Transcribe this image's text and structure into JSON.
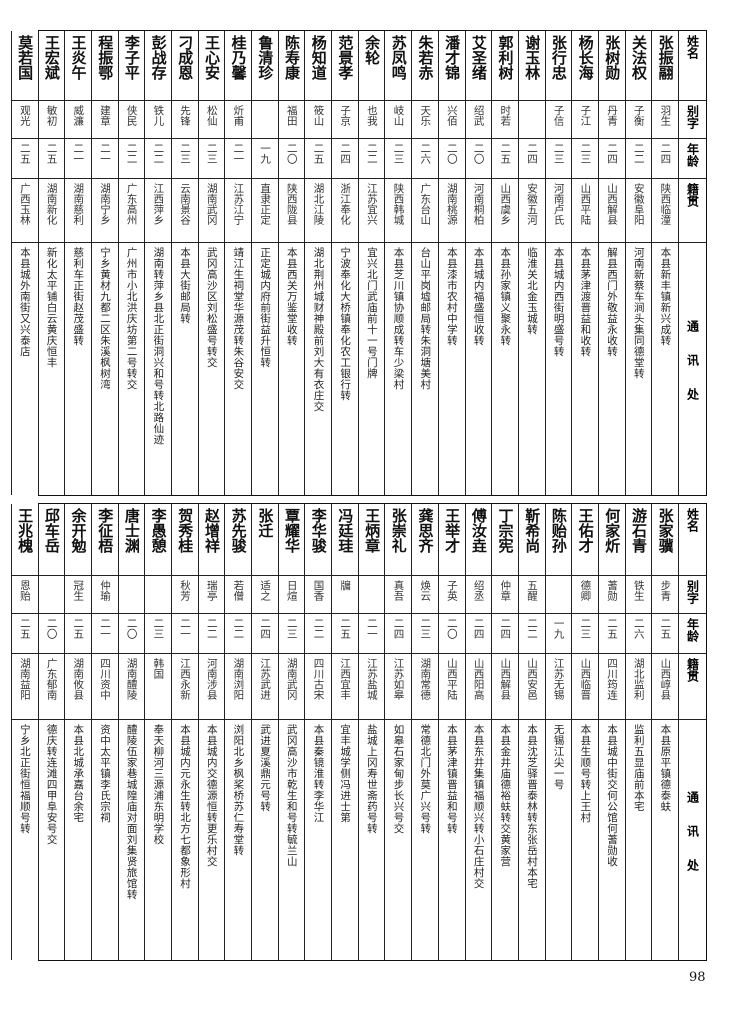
{
  "headers": {
    "name": "姓名",
    "alias": "别字",
    "age": "年龄",
    "native": "籍贯",
    "address": "通讯处"
  },
  "top": [
    {
      "name": "张振翮",
      "alias": "羽生",
      "age": "二四",
      "native": "陕西临潼",
      "address": "本县新丰镇新兴成转"
    },
    {
      "name": "关法权",
      "alias": "子衡",
      "age": "二二",
      "native": "安徽阜阳",
      "address": "河南新蔡车涧头集同德堂转"
    },
    {
      "name": "张树勋",
      "alias": "丹青",
      "age": "二四",
      "native": "山西解县",
      "address": "解县西门外敬益永收转"
    },
    {
      "name": "杨长海",
      "alias": "子江",
      "age": "二三",
      "native": "山西平陆",
      "address": "本县茅津渡晋益和收转"
    },
    {
      "name": "张行忠",
      "alias": "子信",
      "age": "二三",
      "native": "河南卢氏",
      "address": "本县城内西街明盛号转"
    },
    {
      "name": "谢玉林",
      "alias": "",
      "age": "二四",
      "native": "安徽五河",
      "address": "临淮关北金玉城转"
    },
    {
      "name": "郭利树",
      "alias": "时若",
      "age": "二五",
      "native": "山西虞乡",
      "address": "本县孙家镇义聚永转"
    },
    {
      "name": "艾圣绪",
      "alias": "绍武",
      "age": "二〇",
      "native": "河南桐柏",
      "address": "本县城内福盛恒收转"
    },
    {
      "name": "潘才锦",
      "alias": "兴佰",
      "age": "二〇",
      "native": "湖南桃源",
      "address": "本县漆市农村中学转"
    },
    {
      "name": "朱若赤",
      "alias": "天乐",
      "age": "二六",
      "native": "广东台山",
      "address": "台山平岗墟邮局转朱洞塘美村"
    },
    {
      "name": "苏凤鸣",
      "alias": "岐山",
      "age": "二三",
      "native": "陕西韩城",
      "address": "本县芝川镇协顺成转车少梁村"
    },
    {
      "name": "余轮",
      "alias": "也我",
      "age": "二二",
      "native": "江苏宜兴",
      "address": "宜兴北门武庙前十一号门牌"
    },
    {
      "name": "范景孝",
      "alias": "子京",
      "age": "二四",
      "native": "浙江奉化",
      "address": "宁波奉化大桥镇奉化农工银行转"
    },
    {
      "name": "杨知道",
      "alias": "筱山",
      "age": "二五",
      "native": "湖北江陵",
      "address": "湖北荆州城财神殿前刘大有衣庄交"
    },
    {
      "name": "陈寿康",
      "alias": "福田",
      "age": "二〇",
      "native": "陕西陇县",
      "address": "本县西关万鉴堂收转"
    },
    {
      "name": "鲁清珍",
      "alias": "",
      "age": "一九",
      "native": "直隶正定",
      "address": "正定城内府前街益升恒转"
    },
    {
      "name": "桂乃馨",
      "alias": "炘甫",
      "age": "二一",
      "native": "江苏江宁",
      "address": "靖江生祠堂华源茂转朱谷安交"
    },
    {
      "name": "王心安",
      "alias": "松仙",
      "age": "二三",
      "native": "湖南武冈",
      "address": "武冈高沙区刘松盛号转交"
    },
    {
      "name": "刁成恩",
      "alias": "先锋",
      "age": "二三",
      "native": "云南景谷",
      "address": "本县大街邮局转"
    },
    {
      "name": "彭战存",
      "alias": "铁儿",
      "age": "二二",
      "native": "江西萍乡",
      "address": "湖南转萍乡县北正街洞兴和号转北路仙迹"
    },
    {
      "name": "李子平",
      "alias": "侠民",
      "age": "二二",
      "native": "广东高州",
      "address": "广州市小北洪庆坊第二号转交"
    },
    {
      "name": "程振鄂",
      "alias": "建章",
      "age": "二一",
      "native": "湖南宁乡",
      "address": "宁乡黄材九都二区朱溪枫树湾"
    },
    {
      "name": "王炎午",
      "alias": "威濂",
      "age": "二一",
      "native": "湖南慈利",
      "address": "慈利车正街赵茂盛转"
    },
    {
      "name": "王宏斌",
      "alias": "敏初",
      "age": "二五",
      "native": "湖南新化",
      "address": "新化太平铺白云黄庆恒丰"
    },
    {
      "name": "莫若国",
      "alias": "观光",
      "age": "二五",
      "native": "广西玉林",
      "address": "本县城外南街又兴泰店"
    }
  ],
  "bottom": [
    {
      "name": "张家骥",
      "alias": "步青",
      "age": "二五",
      "native": "山西崞县",
      "address": "本县原平镇德泰蚨"
    },
    {
      "name": "游石青",
      "alias": "铁生",
      "age": "二六",
      "native": "湖北监利",
      "address": "监利五显庙前本宅"
    },
    {
      "name": "何家炘",
      "alias": "蓍勋",
      "age": "二五",
      "native": "四川筠连",
      "address": "本县城中街交何公馆何蓍勋收"
    },
    {
      "name": "王佑才",
      "alias": "德卿",
      "age": "二三",
      "native": "山西临晋",
      "address": "本县生顺号转上王村"
    },
    {
      "name": "陈贻孙",
      "alias": "",
      "age": "一九",
      "native": "江苏无锡",
      "address": "无锡江尖一号"
    },
    {
      "name": "靳希尚",
      "alias": "五醒",
      "age": "二二",
      "native": "山西安邑",
      "address": "本县沈芝驿晋泰林转东张岳村本宅"
    },
    {
      "name": "丁宗宪",
      "alias": "仲章",
      "age": "二四",
      "native": "山西解县",
      "address": "本县金井庙德裕蚨转交黄家营"
    },
    {
      "name": "傅汝垚",
      "alias": "绍丞",
      "age": "二四",
      "native": "山西阳高",
      "address": "本县东井集镇福顺兴转小石庄村交"
    },
    {
      "name": "王举才",
      "alias": "子英",
      "age": "二〇",
      "native": "山西平陆",
      "address": "本县茅津镇晋益和号转"
    },
    {
      "name": "龚思齐",
      "alias": "焕云",
      "age": "二三",
      "native": "湖南常德",
      "address": "常德北门外莫广兴号转"
    },
    {
      "name": "张崇礼",
      "alias": "真吾",
      "age": "二四",
      "native": "江苏如皋",
      "address": "如皋石家甸步长兴号交"
    },
    {
      "name": "王炳章",
      "alias": "",
      "age": "二一",
      "native": "江苏盐城",
      "address": "盐城上冈寿世斋药号转"
    },
    {
      "name": "冯廷珪",
      "alias": "牖",
      "age": "二五",
      "native": "江西宜丰",
      "address": "宜丰城学侧冯进士第"
    },
    {
      "name": "李华骏",
      "alias": "国香",
      "age": "二二",
      "native": "四川古宋",
      "address": "本县秦镜淮转李华江"
    },
    {
      "name": "覃耀华",
      "alias": "日煊",
      "age": "二三",
      "native": "湖南武冈",
      "address": "武冈高沙市乾生和号转毓兰山"
    },
    {
      "name": "张迁",
      "alias": "适之",
      "age": "二四",
      "native": "江苏武进",
      "address": "武进夏溪鼎元号转"
    },
    {
      "name": "苏先骏",
      "alias": "若僧",
      "age": "二二",
      "native": "湖南浏阳",
      "address": "浏阳北乡枫桨桥苏仁寿堂转"
    },
    {
      "name": "赵增祥",
      "alias": "瑞亭",
      "age": "二二",
      "native": "河南涉县",
      "address": "本县城内交德源恒转更乐村交"
    },
    {
      "name": "贺秀桂",
      "alias": "秋芳",
      "age": "二一",
      "native": "江西永新",
      "address": "本县城内元永生转北方七都象形村"
    },
    {
      "name": "李愚憩",
      "alias": "",
      "age": "二三",
      "native": "韩国",
      "address": "奉天柳河三源浦东明学校"
    },
    {
      "name": "唐士渊",
      "alias": "",
      "age": "二〇",
      "native": "湖南醴陵",
      "address": "醴陵伍家巷城隍庙对面刘集贤旅馆转"
    },
    {
      "name": "李征梧",
      "alias": "仲瑜",
      "age": "二一",
      "native": "四川资中",
      "address": "资中太平镇李氏宗祠"
    },
    {
      "name": "余开勉",
      "alias": "冠生",
      "age": "二五",
      "native": "湖南攸县",
      "address": "本县北城承嘉台余宅"
    },
    {
      "name": "邱车岳",
      "alias": "",
      "age": "二〇",
      "native": "广东郁南",
      "address": "德庆转连滩四甲阜安号交"
    },
    {
      "name": "王兆槐",
      "alias": "恩贻",
      "age": "二五",
      "native": "湖南益阳",
      "address": "宁乡北正街恒福顺号转"
    }
  ],
  "page_number": "98"
}
